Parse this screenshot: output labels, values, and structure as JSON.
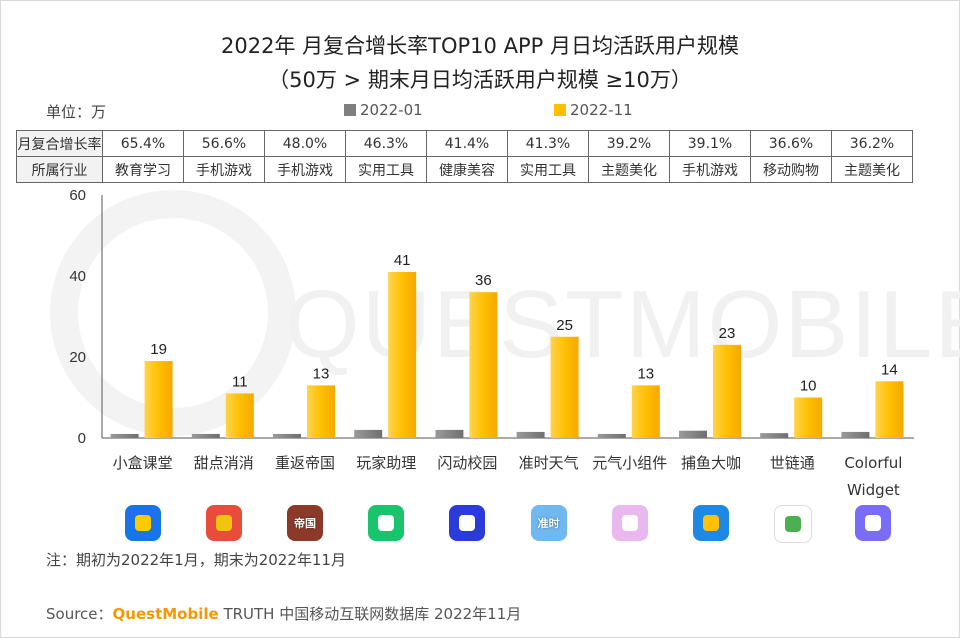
{
  "title_line1": "2022年 月复合增长率TOP10 APP 月日均活跃用户规模",
  "title_line2": "（50万 > 期末月日均活跃用户规模 ≥10万）",
  "unit_label": "单位：万",
  "legend": [
    {
      "label": "2022-01",
      "color": "#7f7f7f"
    },
    {
      "label": "2022-11",
      "color": "#ffc000"
    }
  ],
  "table": {
    "row1_header": "月复合增长率",
    "row2_header": "所属行业",
    "growth": [
      "65.4%",
      "56.6%",
      "48.0%",
      "46.3%",
      "41.4%",
      "41.3%",
      "39.2%",
      "39.1%",
      "36.6%",
      "36.2%"
    ],
    "industry": [
      "教育学习",
      "手机游戏",
      "手机游戏",
      "实用工具",
      "健康美容",
      "实用工具",
      "主题美化",
      "手机游戏",
      "移动购物",
      "主题美化"
    ]
  },
  "chart_data": {
    "type": "bar",
    "title": "2022年 月复合增长率TOP10 APP 月日均活跃用户规模",
    "categories": [
      "小盒课堂",
      "甜点消消",
      "重返帝国",
      "玩家助理",
      "闪动校园",
      "准时天气",
      "元气小组件",
      "捕鱼大咖",
      "世链通",
      "Colorful Widget"
    ],
    "series": [
      {
        "name": "2022-01",
        "values": [
          1,
          1,
          1,
          2,
          2,
          1.5,
          1,
          1.8,
          1.2,
          1.5
        ]
      },
      {
        "name": "2022-11",
        "values": [
          19,
          11,
          13,
          41,
          36,
          25,
          13,
          23,
          10,
          14
        ]
      }
    ],
    "data_labels": [
      "19",
      "11",
      "13",
      "41",
      "36",
      "25",
      "13",
      "23",
      "10",
      "14"
    ],
    "yticks": [
      "0",
      "20",
      "40",
      "60"
    ],
    "ylim": [
      0,
      60
    ],
    "ylabel": "万",
    "xlabel": ""
  },
  "category_line2": {
    "Colorful Widget": [
      "Colorful",
      "Widget"
    ]
  },
  "icons": [
    {
      "name": "xiaohe-app-icon",
      "bg": "#1a73e8",
      "accent": "#ffcc00",
      "text": ""
    },
    {
      "name": "tiandian-app-icon",
      "bg": "#e74c3c",
      "accent": "#f1c40f",
      "text": ""
    },
    {
      "name": "chongfan-app-icon",
      "bg": "#8b3a2a",
      "accent": "#d4a05a",
      "text": "帝国"
    },
    {
      "name": "wanjia-app-icon",
      "bg": "#19c46c",
      "accent": "#ffffff",
      "text": ""
    },
    {
      "name": "shandong-app-icon",
      "bg": "#2a3bd9",
      "accent": "#ffffff",
      "text": ""
    },
    {
      "name": "zhunshi-app-icon",
      "bg": "#6fb8f0",
      "accent": "#ffd54a",
      "text": "准时"
    },
    {
      "name": "yuanqi-app-icon",
      "bg": "#e9b8ef",
      "accent": "#ffffff",
      "text": ""
    },
    {
      "name": "buyu-app-icon",
      "bg": "#1e88e5",
      "accent": "#ffc107",
      "text": ""
    },
    {
      "name": "shilian-app-icon",
      "bg": "#ffffff",
      "accent": "#4caf50",
      "text": ""
    },
    {
      "name": "colorful-app-icon",
      "bg": "#7b6cf6",
      "accent": "#ffffff",
      "text": ""
    }
  ],
  "note": "注：期初为2022年1月，期末为2022年11月",
  "source": {
    "prefix": "Source：",
    "brand": "QuestMobile",
    "suffix": " TRUTH 中国移动互联网数据库 2022年11月"
  },
  "watermark": "QUESTMOBILE"
}
